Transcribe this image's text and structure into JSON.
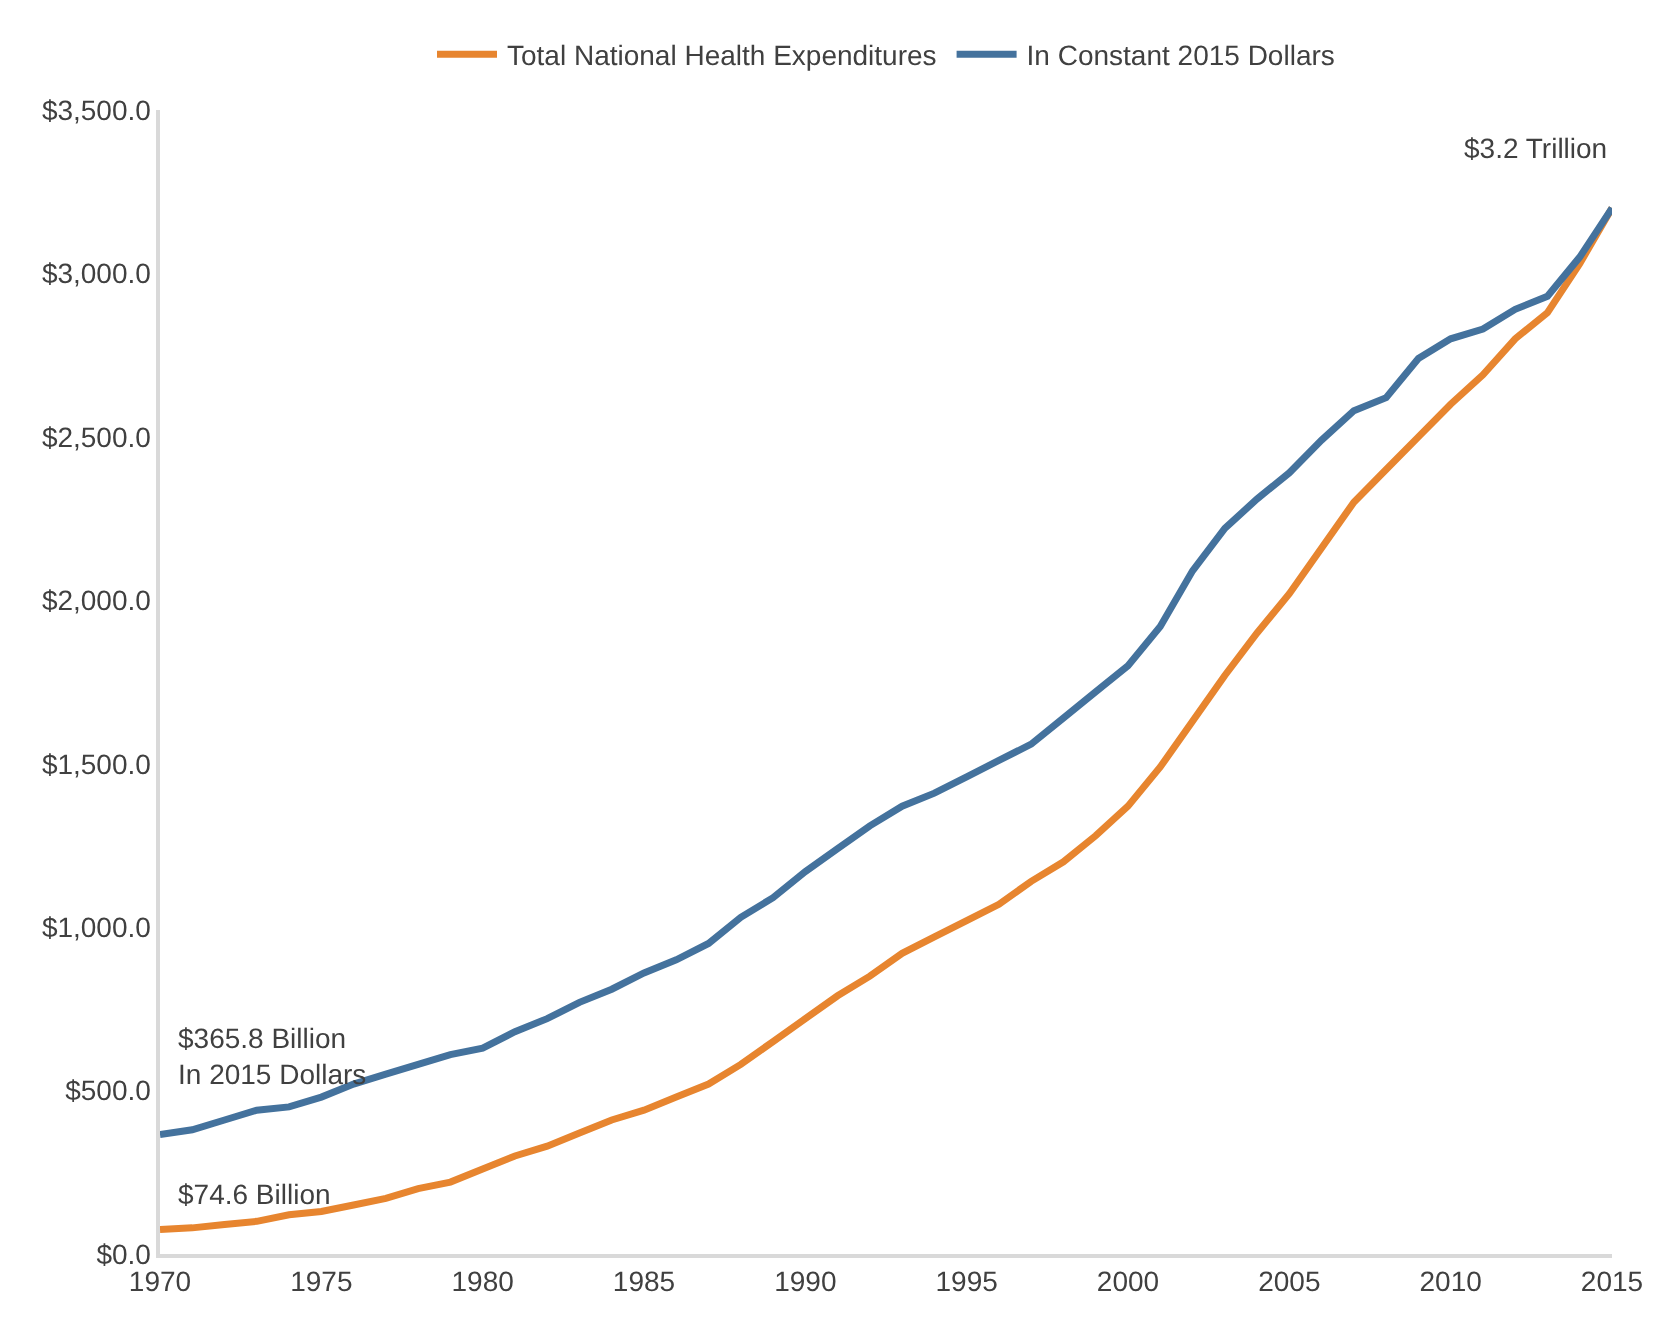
{
  "chart_data": {
    "type": "line",
    "x": [
      1970,
      1971,
      1972,
      1973,
      1974,
      1975,
      1976,
      1977,
      1978,
      1979,
      1980,
      1981,
      1982,
      1983,
      1984,
      1985,
      1986,
      1987,
      1988,
      1989,
      1990,
      1991,
      1992,
      1993,
      1994,
      1995,
      1996,
      1997,
      1998,
      1999,
      2000,
      2001,
      2002,
      2003,
      2004,
      2005,
      2006,
      2007,
      2008,
      2009,
      2010,
      2011,
      2012,
      2013,
      2014,
      2015
    ],
    "series": [
      {
        "name": "Total National Health Expenditures",
        "color": "#e7852f",
        "values": [
          74.6,
          80,
          90,
          100,
          120,
          130,
          150,
          170,
          200,
          220,
          260,
          300,
          330,
          370,
          410,
          440,
          480,
          520,
          580,
          650,
          720,
          790,
          850,
          920,
          970,
          1020,
          1070,
          1140,
          1200,
          1280,
          1370,
          1490,
          1630,
          1770,
          1900,
          2020,
          2160,
          2300,
          2400,
          2500,
          2600,
          2690,
          2800,
          2880,
          3030,
          3200
        ]
      },
      {
        "name": "In Constant 2015 Dollars",
        "color": "#44729d",
        "values": [
          365.8,
          380,
          410,
          440,
          450,
          480,
          520,
          550,
          580,
          610,
          630,
          680,
          720,
          770,
          810,
          860,
          900,
          950,
          1030,
          1090,
          1170,
          1240,
          1310,
          1370,
          1410,
          1460,
          1510,
          1560,
          1640,
          1720,
          1800,
          1920,
          2090,
          2220,
          2310,
          2390,
          2490,
          2580,
          2620,
          2740,
          2800,
          2830,
          2890,
          2930,
          3050,
          3200
        ]
      }
    ],
    "xlim": [
      1970,
      2015
    ],
    "xticks": [
      1970,
      1975,
      1980,
      1985,
      1990,
      1995,
      2000,
      2005,
      2010,
      2015
    ],
    "ylim": [
      0,
      3500
    ],
    "yticks": [
      {
        "value": 0,
        "label": "$0.0"
      },
      {
        "value": 500,
        "label": "$500.0"
      },
      {
        "value": 1000,
        "label": "$1,000.0"
      },
      {
        "value": 1500,
        "label": "$1,500.0"
      },
      {
        "value": 2000,
        "label": "$2,000.0"
      },
      {
        "value": 2500,
        "label": "$2,500.0"
      },
      {
        "value": 3000,
        "label": "$3,000.0"
      },
      {
        "value": 3500,
        "label": "$3,500.0"
      }
    ],
    "annotations": [
      "$365.8 Billion\nIn 2015 Dollars",
      "$74.6 Billion",
      "$3.2 Trillion"
    ],
    "grid": false,
    "legend": "top",
    "marker": "none",
    "line_style": "solid"
  }
}
